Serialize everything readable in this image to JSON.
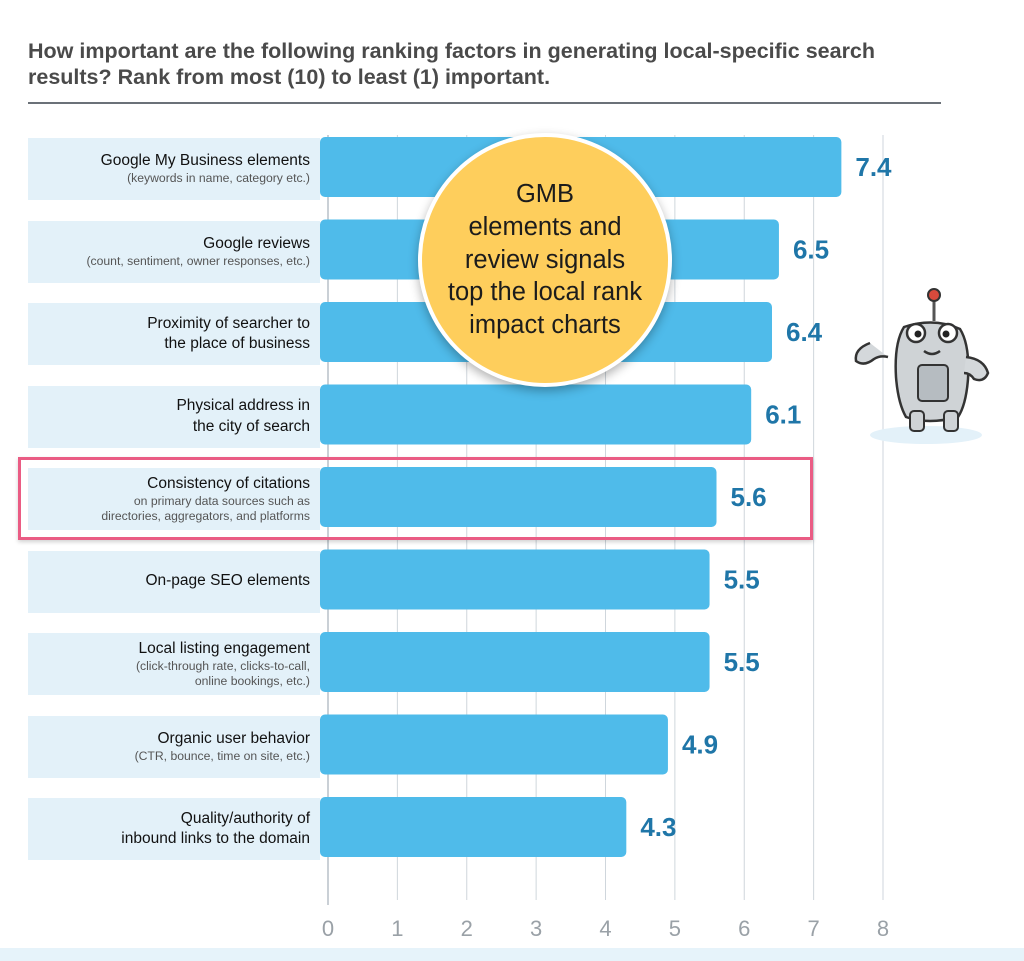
{
  "title": {
    "line1": "How important are the following ranking factors in generating local-specific search",
    "line2": "results? Rank from most (10) to least (1) important."
  },
  "callout": {
    "text": "GMB\nelements and\nreview signals\ntop the local rank\nimpact charts"
  },
  "highlight_index": 4,
  "colors": {
    "bar": "#4fbbea",
    "value_label": "#1f76a8",
    "label_panel": "#e3f1f9",
    "highlight": "#ea5c84",
    "callout": "#fece5c",
    "axis_text": "#9aa1a7",
    "grid": "#cfd6dc"
  },
  "labels": [
    {
      "main": "Google My Business elements",
      "sub": "(keywords in name, category etc.)"
    },
    {
      "main": "Google reviews",
      "sub": "(count, sentiment, owner responses, etc.)"
    },
    {
      "main": "Proximity of searcher to\nthe place of business",
      "sub": ""
    },
    {
      "main": "Physical address in\nthe city of search",
      "sub": ""
    },
    {
      "main": "Consistency of citations",
      "sub": "on primary data sources such as\ndirectories, aggregators, and platforms"
    },
    {
      "main": "On-page SEO elements",
      "sub": ""
    },
    {
      "main": "Local listing engagement",
      "sub": "(click-through rate, clicks-to-call,\nonline bookings, etc.)"
    },
    {
      "main": "Organic user behavior",
      "sub": "(CTR, bounce, time on site, etc.)"
    },
    {
      "main": "Quality/authority of\ninbound links to the domain",
      "sub": ""
    }
  ],
  "chart_data": {
    "type": "bar",
    "orientation": "horizontal",
    "categories": [
      "Google My Business elements",
      "Google reviews",
      "Proximity of searcher to the place of business",
      "Physical address in the city of search",
      "Consistency of citations",
      "On-page SEO elements",
      "Local listing engagement",
      "Organic user behavior",
      "Quality/authority of inbound links to the domain"
    ],
    "values": [
      7.4,
      6.5,
      6.4,
      6.1,
      5.6,
      5.5,
      5.5,
      4.9,
      4.3
    ],
    "value_labels": [
      "7.4",
      "6.5",
      "6.4",
      "6.1",
      "5.6",
      "5.5",
      "5.5",
      "4.9",
      "4.3"
    ],
    "xlim": [
      0,
      8
    ],
    "xticks": [
      "0",
      "1",
      "2",
      "3",
      "4",
      "5",
      "6",
      "7",
      "8"
    ],
    "grid": true,
    "legend": "none"
  }
}
